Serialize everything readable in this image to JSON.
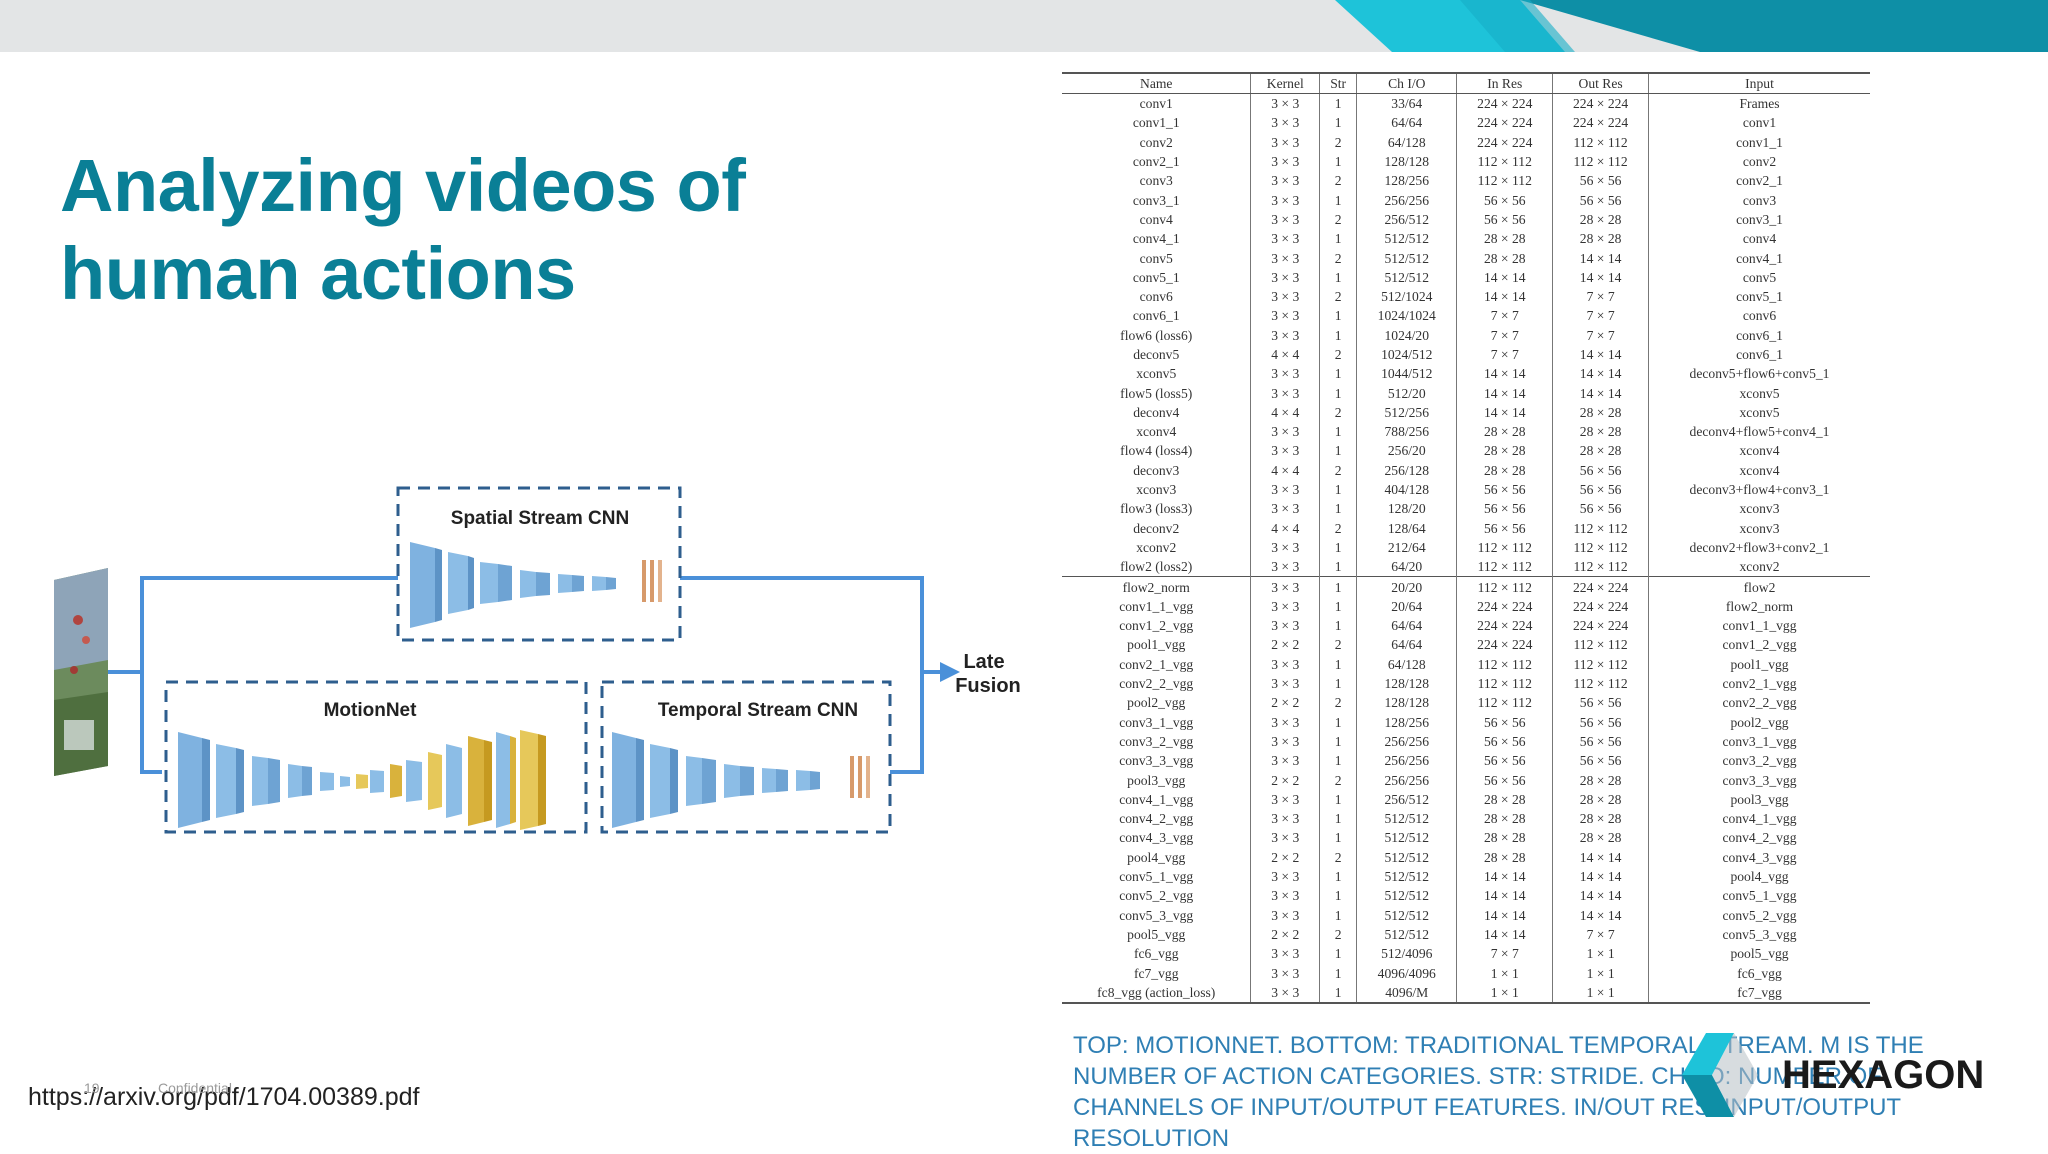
{
  "slide": {
    "title_line1": "Analyzing videos of",
    "title_line2": "human actions",
    "url": "https://arxiv.org/pdf/1704.00389.pdf",
    "page_number": "19",
    "confidential": "Confidential",
    "caption": "TOP: MOTIONNET. BOTTOM: TRADITIONAL TEMPORAL STREAM. M IS THE NUMBER OF ACTION CATEGORIES. STR: STRIDE. CH I/O: NUMBER OF CHANNELS OF INPUT/OUTPUT FEATURES. IN/OUT RES: INPUT/OUTPUT RESOLUTION",
    "logo_text": "HEXAGON",
    "colors": {
      "title": "#0a7f96",
      "caption": "#2f7fb4",
      "topbar": "#e3e5e6",
      "accent_cyan": "#1ec3d9",
      "accent_teal": "#0e8fa6",
      "flow_line": "#4a90d9"
    }
  },
  "diagram": {
    "spatial_label": "Spatial Stream CNN",
    "motionnet_label": "MotionNet",
    "temporal_label": "Temporal Stream CNN",
    "fusion_line1": "Late",
    "fusion_line2": "Fusion"
  },
  "table": {
    "headers": [
      "Name",
      "Kernel",
      "Str",
      "Ch I/O",
      "In Res",
      "Out Res",
      "Input"
    ],
    "rows": [
      [
        "conv1",
        "3 × 3",
        "1",
        "33/64",
        "224 × 224",
        "224 × 224",
        "Frames"
      ],
      [
        "conv1_1",
        "3 × 3",
        "1",
        "64/64",
        "224 × 224",
        "224 × 224",
        "conv1"
      ],
      [
        "conv2",
        "3 × 3",
        "2",
        "64/128",
        "224 × 224",
        "112 × 112",
        "conv1_1"
      ],
      [
        "conv2_1",
        "3 × 3",
        "1",
        "128/128",
        "112 × 112",
        "112 × 112",
        "conv2"
      ],
      [
        "conv3",
        "3 × 3",
        "2",
        "128/256",
        "112 × 112",
        "56 × 56",
        "conv2_1"
      ],
      [
        "conv3_1",
        "3 × 3",
        "1",
        "256/256",
        "56 × 56",
        "56 × 56",
        "conv3"
      ],
      [
        "conv4",
        "3 × 3",
        "2",
        "256/512",
        "56 × 56",
        "28 × 28",
        "conv3_1"
      ],
      [
        "conv4_1",
        "3 × 3",
        "1",
        "512/512",
        "28 × 28",
        "28 × 28",
        "conv4"
      ],
      [
        "conv5",
        "3 × 3",
        "2",
        "512/512",
        "28 × 28",
        "14 × 14",
        "conv4_1"
      ],
      [
        "conv5_1",
        "3 × 3",
        "1",
        "512/512",
        "14 × 14",
        "14 × 14",
        "conv5"
      ],
      [
        "conv6",
        "3 × 3",
        "2",
        "512/1024",
        "14 × 14",
        "7 × 7",
        "conv5_1"
      ],
      [
        "conv6_1",
        "3 × 3",
        "1",
        "1024/1024",
        "7 × 7",
        "7 × 7",
        "conv6"
      ],
      [
        "flow6 (loss6)",
        "3 × 3",
        "1",
        "1024/20",
        "7 × 7",
        "7 × 7",
        "conv6_1"
      ],
      [
        "deconv5",
        "4 × 4",
        "2",
        "1024/512",
        "7 × 7",
        "14 × 14",
        "conv6_1"
      ],
      [
        "xconv5",
        "3 × 3",
        "1",
        "1044/512",
        "14 × 14",
        "14 × 14",
        "deconv5+flow6+conv5_1"
      ],
      [
        "flow5 (loss5)",
        "3 × 3",
        "1",
        "512/20",
        "14 × 14",
        "14 × 14",
        "xconv5"
      ],
      [
        "deconv4",
        "4 × 4",
        "2",
        "512/256",
        "14 × 14",
        "28 × 28",
        "xconv5"
      ],
      [
        "xconv4",
        "3 × 3",
        "1",
        "788/256",
        "28 × 28",
        "28 × 28",
        "deconv4+flow5+conv4_1"
      ],
      [
        "flow4 (loss4)",
        "3 × 3",
        "1",
        "256/20",
        "28 × 28",
        "28 × 28",
        "xconv4"
      ],
      [
        "deconv3",
        "4 × 4",
        "2",
        "256/128",
        "28 × 28",
        "56 × 56",
        "xconv4"
      ],
      [
        "xconv3",
        "3 × 3",
        "1",
        "404/128",
        "56 × 56",
        "56 × 56",
        "deconv3+flow4+conv3_1"
      ],
      [
        "flow3 (loss3)",
        "3 × 3",
        "1",
        "128/20",
        "56 × 56",
        "56 × 56",
        "xconv3"
      ],
      [
        "deconv2",
        "4 × 4",
        "2",
        "128/64",
        "56 × 56",
        "112 × 112",
        "xconv3"
      ],
      [
        "xconv2",
        "3 × 3",
        "1",
        "212/64",
        "112 × 112",
        "112 × 112",
        "deconv2+flow3+conv2_1"
      ],
      [
        "flow2 (loss2)",
        "3 × 3",
        "1",
        "64/20",
        "112 × 112",
        "112 × 112",
        "xconv2"
      ],
      [
        "flow2_norm",
        "3 × 3",
        "1",
        "20/20",
        "112 × 112",
        "224 × 224",
        "flow2"
      ],
      [
        "conv1_1_vgg",
        "3 × 3",
        "1",
        "20/64",
        "224 × 224",
        "224 × 224",
        "flow2_norm"
      ],
      [
        "conv1_2_vgg",
        "3 × 3",
        "1",
        "64/64",
        "224 × 224",
        "224 × 224",
        "conv1_1_vgg"
      ],
      [
        "pool1_vgg",
        "2 × 2",
        "2",
        "64/64",
        "224 × 224",
        "112 × 112",
        "conv1_2_vgg"
      ],
      [
        "conv2_1_vgg",
        "3 × 3",
        "1",
        "64/128",
        "112 × 112",
        "112 × 112",
        "pool1_vgg"
      ],
      [
        "conv2_2_vgg",
        "3 × 3",
        "1",
        "128/128",
        "112 × 112",
        "112 × 112",
        "conv2_1_vgg"
      ],
      [
        "pool2_vgg",
        "2 × 2",
        "2",
        "128/128",
        "112 × 112",
        "56 × 56",
        "conv2_2_vgg"
      ],
      [
        "conv3_1_vgg",
        "3 × 3",
        "1",
        "128/256",
        "56 × 56",
        "56 × 56",
        "pool2_vgg"
      ],
      [
        "conv3_2_vgg",
        "3 × 3",
        "1",
        "256/256",
        "56 × 56",
        "56 × 56",
        "conv3_1_vgg"
      ],
      [
        "conv3_3_vgg",
        "3 × 3",
        "1",
        "256/256",
        "56 × 56",
        "56 × 56",
        "conv3_2_vgg"
      ],
      [
        "pool3_vgg",
        "2 × 2",
        "2",
        "256/256",
        "56 × 56",
        "28 × 28",
        "conv3_3_vgg"
      ],
      [
        "conv4_1_vgg",
        "3 × 3",
        "1",
        "256/512",
        "28 × 28",
        "28 × 28",
        "pool3_vgg"
      ],
      [
        "conv4_2_vgg",
        "3 × 3",
        "1",
        "512/512",
        "28 × 28",
        "28 × 28",
        "conv4_1_vgg"
      ],
      [
        "conv4_3_vgg",
        "3 × 3",
        "1",
        "512/512",
        "28 × 28",
        "28 × 28",
        "conv4_2_vgg"
      ],
      [
        "pool4_vgg",
        "2 × 2",
        "2",
        "512/512",
        "28 × 28",
        "14 × 14",
        "conv4_3_vgg"
      ],
      [
        "conv5_1_vgg",
        "3 × 3",
        "1",
        "512/512",
        "14 × 14",
        "14 × 14",
        "pool4_vgg"
      ],
      [
        "conv5_2_vgg",
        "3 × 3",
        "1",
        "512/512",
        "14 × 14",
        "14 × 14",
        "conv5_1_vgg"
      ],
      [
        "conv5_3_vgg",
        "3 × 3",
        "1",
        "512/512",
        "14 × 14",
        "14 × 14",
        "conv5_2_vgg"
      ],
      [
        "pool5_vgg",
        "2 × 2",
        "2",
        "512/512",
        "14 × 14",
        "7 × 7",
        "conv5_3_vgg"
      ],
      [
        "fc6_vgg",
        "3 × 3",
        "1",
        "512/4096",
        "7 × 7",
        "1 × 1",
        "pool5_vgg"
      ],
      [
        "fc7_vgg",
        "3 × 3",
        "1",
        "4096/4096",
        "1 × 1",
        "1 × 1",
        "fc6_vgg"
      ],
      [
        "fc8_vgg (action_loss)",
        "3 × 3",
        "1",
        "4096/M",
        "1 × 1",
        "1 × 1",
        "fc7_vgg"
      ]
    ]
  }
}
